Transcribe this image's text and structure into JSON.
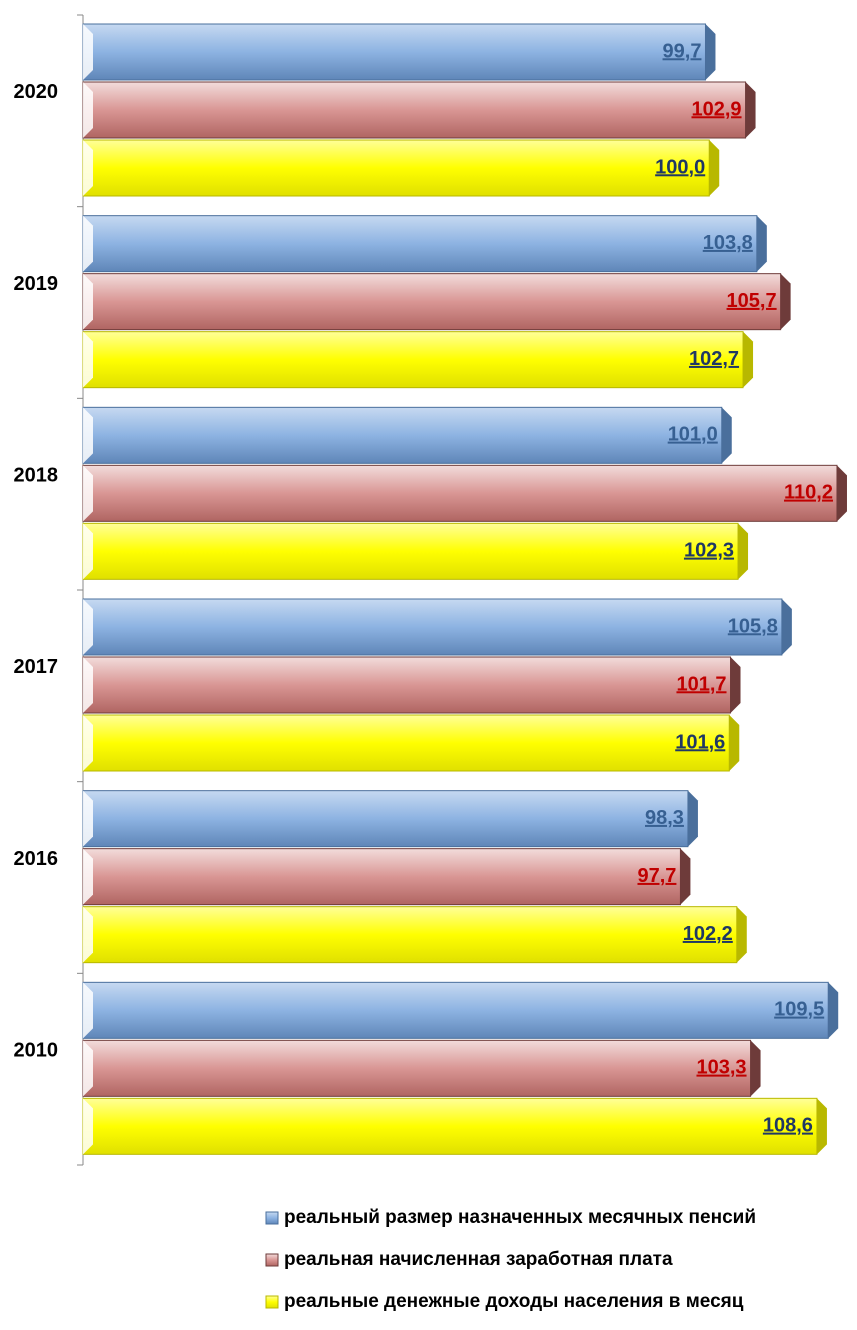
{
  "chart_data": {
    "type": "bar",
    "orientation": "horizontal",
    "categories": [
      "2020",
      "2019",
      "2018",
      "2017",
      "2016",
      "2010"
    ],
    "xlim": [
      50,
      111
    ],
    "series": [
      {
        "name": "реальный размер назначенных месячных пенсий",
        "color": "#8db3e2",
        "label_color": "#376092",
        "values": [
          99.7,
          103.8,
          101.0,
          105.8,
          98.3,
          109.5
        ],
        "value_labels": [
          "99,7",
          "103,8",
          "101,0",
          "105,8",
          "98,3",
          "109,5"
        ]
      },
      {
        "name": "реальная начисленная заработная плата",
        "color": "#d99694",
        "label_color": "#c00000",
        "values": [
          102.9,
          105.7,
          110.2,
          101.7,
          97.7,
          103.3
        ],
        "value_labels": [
          "102,9",
          "105,7",
          "110,2",
          "101,7",
          "97,7",
          "103,3"
        ]
      },
      {
        "name": "реальные  денежные доходы населения в месяц",
        "color": "#ffff00",
        "label_color": "#1f3864",
        "values": [
          100.0,
          102.7,
          102.3,
          101.6,
          102.2,
          108.6
        ],
        "value_labels": [
          "100,0",
          "102,7",
          "102,3",
          "101,6",
          "102,2",
          "108,6"
        ]
      }
    ]
  }
}
